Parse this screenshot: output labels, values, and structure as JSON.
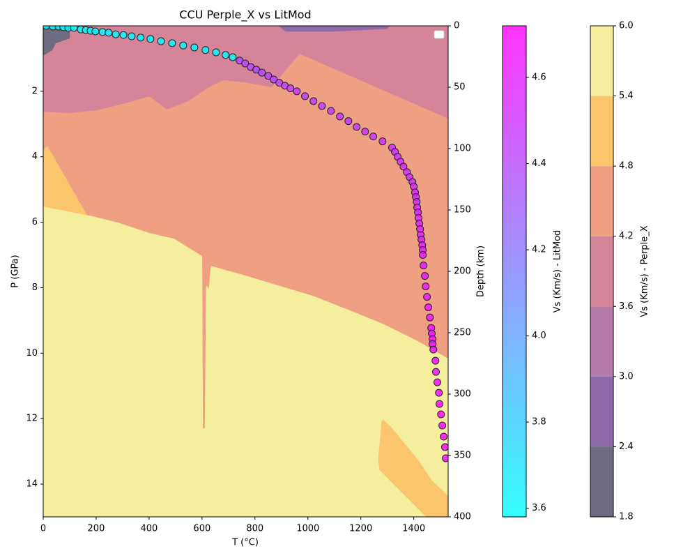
{
  "chart_data": {
    "type": "contour",
    "title": "CCU Perple_X vs LitMod",
    "x_label": "T (°C)",
    "y_label": "P (GPa)",
    "y2_label": "Depth (km)",
    "xlim": [
      0,
      1530
    ],
    "xticks": [
      0,
      200,
      400,
      600,
      800,
      1000,
      1200,
      1400
    ],
    "ylim": [
      0,
      15
    ],
    "y_inverted": true,
    "yticks": [
      2,
      4,
      6,
      8,
      10,
      12,
      14
    ],
    "y2lim": [
      0,
      400
    ],
    "y2ticks": [
      0,
      50,
      100,
      150,
      200,
      250,
      300,
      350,
      400
    ],
    "contour": {
      "label": "Vs (Km/s) - Perple_X",
      "levels": [
        1.8,
        2.4,
        {
          "value": 3,
          "label": "3.0"
        },
        3.6,
        4.2,
        4.8,
        5.4,
        {
          "value": 6,
          "label": "6.0"
        }
      ],
      "colors": [
        "#6e6c80",
        "#8f6aa8",
        "#b47aa8",
        "#d6849a",
        "#efa082",
        "#fbc56e",
        "#f6ee9f"
      ],
      "background_level": 4,
      "regions": [
        {
          "level": 3,
          "T": [
            0,
            0,
            100,
            205,
            311,
            400,
            468,
            547,
            626,
            679,
            758,
            863,
            968,
            1530,
            1530
          ],
          "P": [
            0,
            2.62,
            2.66,
            2.57,
            2.36,
            2.15,
            2.55,
            2.3,
            1.87,
            1.66,
            1.72,
            1.87,
            0.85,
            2.83,
            0
          ]
        },
        {
          "level": 0,
          "T": [
            0,
            100,
            100,
            47,
            34,
            0
          ],
          "P": [
            0,
            0,
            0.38,
            0.53,
            0.74,
            0.91
          ]
        },
        {
          "level": 1,
          "T": [
            889,
            1311,
            1297,
            1100,
            916
          ],
          "P": [
            0,
            0,
            0.09,
            0.17,
            0.17
          ]
        },
        {
          "level": 5,
          "T": [
            0,
            16,
            179,
            0
          ],
          "P": [
            3.79,
            3.68,
            5.98,
            5.53
          ]
        },
        {
          "level": 6,
          "T": [
            0,
            179,
            284,
            403,
            495,
            600,
            603,
            611,
            616,
            626,
            634,
            758,
            889,
            1021,
            1153,
            1284,
            1416,
            1530,
            1530,
            0
          ],
          "P": [
            5.53,
            5.81,
            6.02,
            6.34,
            6.51,
            7.04,
            12.3,
            12.3,
            7.94,
            8.04,
            7.34,
            7.62,
            7.94,
            8.26,
            8.68,
            9.11,
            9.64,
            10.17,
            15,
            15
          ]
        },
        {
          "level": 5,
          "T": [
            1284,
            1311,
            1416,
            1468,
            1530,
            1530,
            1447,
            1271,
            1266,
            1279
          ],
          "P": [
            12.04,
            12.23,
            13.26,
            13.89,
            14.36,
            15,
            15,
            13.57,
            13.26,
            12.09
          ]
        }
      ]
    },
    "scatter": {
      "label": "Vs (Km/s) - LitMod",
      "colormap": "cool",
      "clim": [
        3.58,
        4.72
      ],
      "cticks": [
        3.6,
        3.8,
        {
          "value": 4,
          "label": "4.0"
        },
        4.2,
        4.4,
        4.6
      ],
      "T": [
        11,
        37,
        58,
        76,
        95,
        116,
        142,
        161,
        179,
        197,
        224,
        247,
        274,
        303,
        334,
        368,
        405,
        445,
        487,
        529,
        571,
        613,
        653,
        689,
        716,
        742,
        763,
        784,
        805,
        826,
        850,
        871,
        892,
        913,
        934,
        958,
        989,
        1021,
        1053,
        1087,
        1121,
        1153,
        1184,
        1216,
        1247,
        1282,
        1318,
        1329,
        1339,
        1350,
        1361,
        1374,
        1384,
        1395,
        1400,
        1405,
        1408,
        1411,
        1413,
        1416,
        1418,
        1421,
        1424,
        1426,
        1429,
        1432,
        1434,
        1434,
        1437,
        1442,
        1445,
        1450,
        1455,
        1461,
        1466,
        1468,
        1471,
        1471,
        1474,
        1482,
        1484,
        1489,
        1495,
        1497,
        1503,
        1508,
        1513,
        1518,
        1521
      ],
      "P": [
        0,
        0.02,
        0.02,
        0.04,
        0.06,
        0.06,
        0.11,
        0.13,
        0.15,
        0.17,
        0.19,
        0.21,
        0.26,
        0.28,
        0.32,
        0.36,
        0.4,
        0.47,
        0.53,
        0.6,
        0.66,
        0.74,
        0.81,
        0.89,
        0.96,
        1.06,
        1.15,
        1.26,
        1.34,
        1.43,
        1.53,
        1.64,
        1.74,
        1.83,
        1.91,
        2.0,
        2.15,
        2.3,
        2.45,
        2.6,
        2.77,
        2.91,
        3.09,
        3.23,
        3.38,
        3.53,
        3.72,
        3.85,
        4.0,
        4.15,
        4.3,
        4.47,
        4.62,
        4.77,
        4.91,
        5.09,
        5.23,
        5.38,
        5.55,
        5.7,
        5.87,
        6.04,
        6.21,
        6.38,
        6.53,
        6.7,
        6.85,
        7.0,
        7.32,
        7.64,
        7.96,
        8.28,
        8.6,
        8.91,
        9.23,
        9.4,
        9.57,
        9.72,
        9.89,
        10.23,
        10.57,
        10.89,
        11.21,
        11.55,
        11.87,
        12.21,
        12.55,
        12.87,
        13.21
      ],
      "vs": [
        3.62,
        3.62,
        3.62,
        3.62,
        3.62,
        3.62,
        3.62,
        3.62,
        3.62,
        3.62,
        3.62,
        3.62,
        3.62,
        3.62,
        3.62,
        3.62,
        3.62,
        3.62,
        3.62,
        3.62,
        3.62,
        3.62,
        3.62,
        3.62,
        3.62,
        4.4,
        4.4,
        4.41,
        4.41,
        4.42,
        4.42,
        4.43,
        4.43,
        4.44,
        4.44,
        4.45,
        4.45,
        4.46,
        4.46,
        4.47,
        4.47,
        4.48,
        4.48,
        4.49,
        4.49,
        4.5,
        4.5,
        4.51,
        4.51,
        4.52,
        4.52,
        4.53,
        4.53,
        4.54,
        4.54,
        4.55,
        4.55,
        4.56,
        4.56,
        4.57,
        4.57,
        4.58,
        4.58,
        4.59,
        4.59,
        4.6,
        4.6,
        4.61,
        4.61,
        4.62,
        4.62,
        4.62,
        4.63,
        4.63,
        4.63,
        4.64,
        4.64,
        4.64,
        4.65,
        4.65,
        4.65,
        4.66,
        4.66,
        4.66,
        4.67,
        4.67,
        4.67,
        4.68,
        4.68
      ]
    }
  }
}
